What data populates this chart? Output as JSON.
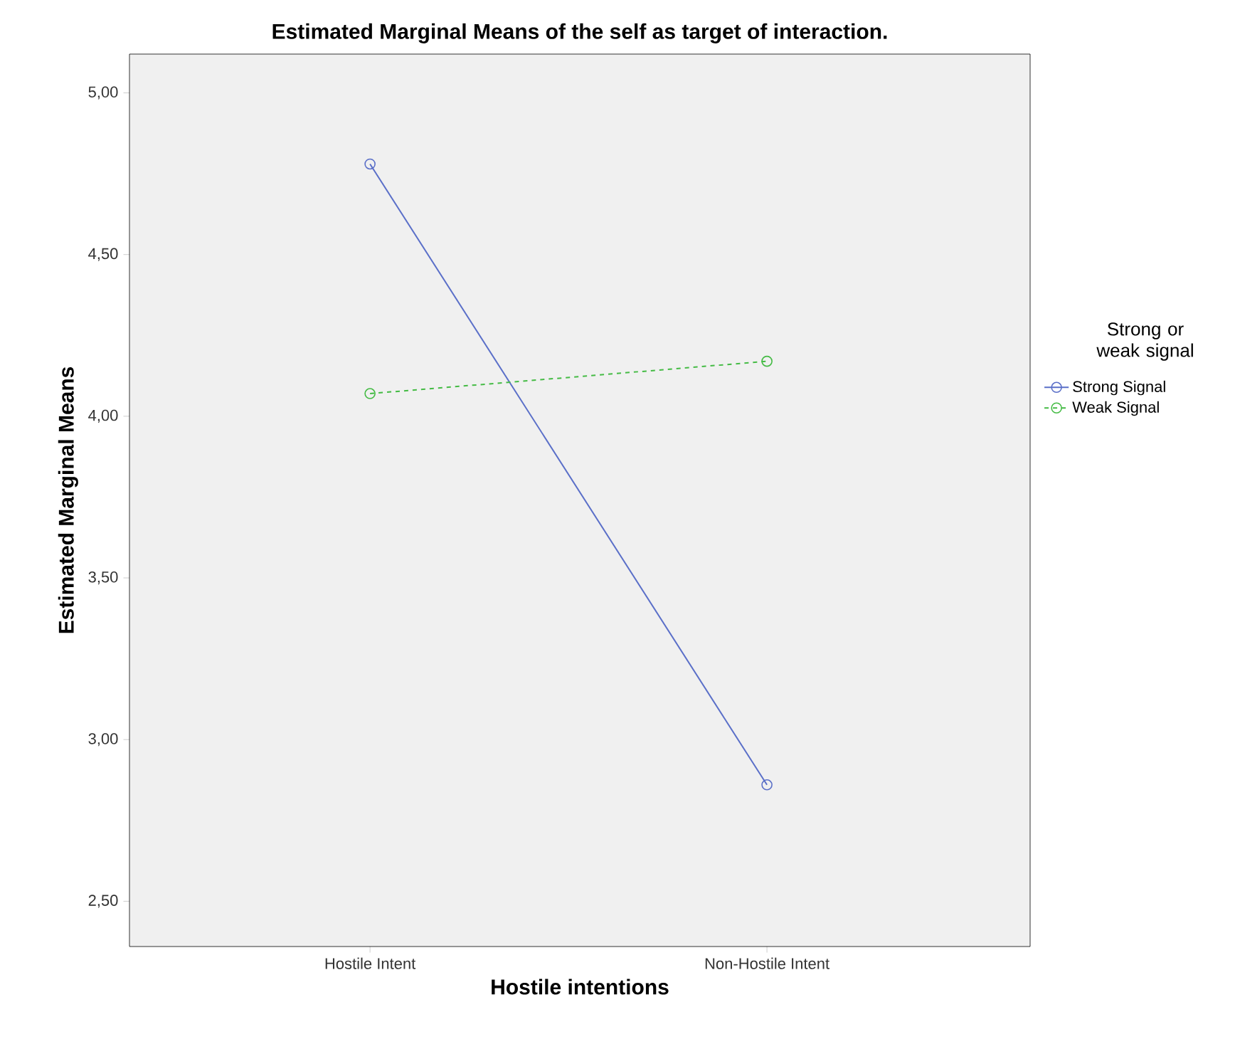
{
  "chart_data": {
    "type": "line",
    "title": "Estimated Marginal Means of the self as target of interaction.",
    "xlabel": "Hostile intentions",
    "ylabel": "Estimated Marginal Means",
    "legend_title": "Strong or weak signal",
    "categories": [
      "Hostile Intent",
      "Non-Hostile Intent"
    ],
    "series": [
      {
        "name": "Strong Signal",
        "color": "#5a6fc8",
        "values": [
          4.78,
          2.86
        ],
        "line_style": "solid"
      },
      {
        "name": "Weak Signal",
        "color": "#44bb44",
        "values": [
          4.07,
          4.17
        ],
        "line_style": "dashed"
      }
    ],
    "ylim": [
      2.36,
      5.12
    ],
    "yticks": [
      {
        "value": 2.5,
        "label": "2,50"
      },
      {
        "value": 3.0,
        "label": "3,00"
      },
      {
        "value": 3.5,
        "label": "3,50"
      },
      {
        "value": 4.0,
        "label": "4,00"
      },
      {
        "value": 4.5,
        "label": "4,50"
      },
      {
        "value": 5.0,
        "label": "5,00"
      }
    ],
    "marker": "circle",
    "legend": "right",
    "grid": false
  }
}
